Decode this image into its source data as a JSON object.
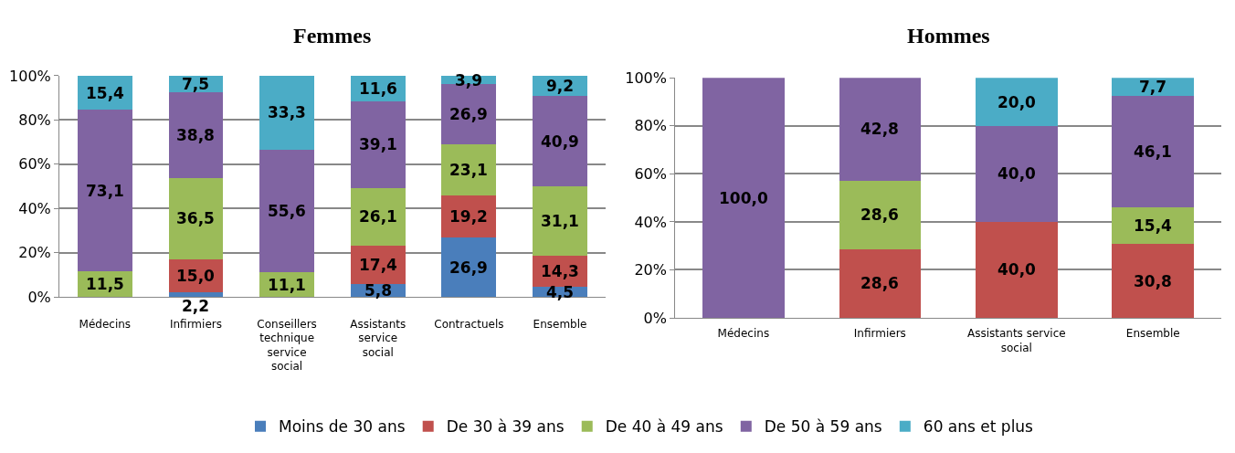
{
  "chart_data": [
    {
      "type": "bar",
      "title": "Femmes",
      "stacked": true,
      "categories": [
        "Médecins",
        "Infirmiers",
        "Conseillers technique service social",
        "Assistants service social",
        "Contractuels",
        "Ensemble"
      ],
      "ylim": [
        0,
        100
      ],
      "yticks": [
        {
          "value": 0,
          "label": "0%"
        },
        {
          "value": 20,
          "label": "20%"
        },
        {
          "value": 40,
          "label": "40%"
        },
        {
          "value": 60,
          "label": "60%"
        },
        {
          "value": 80,
          "label": "80%"
        },
        {
          "value": 100,
          "label": "100%"
        }
      ],
      "grid": "y",
      "legend": "bottom",
      "series": [
        {
          "name": "Moins de 30 ans",
          "color": "#4a7ebb",
          "values": [
            null,
            2.2,
            null,
            5.8,
            26.9,
            4.5
          ],
          "value_labels": [
            null,
            "2,2",
            null,
            "5,8",
            "26,9",
            "4,5"
          ]
        },
        {
          "name": "De 30 à 39 ans",
          "color": "#c0504d",
          "values": [
            null,
            15.0,
            null,
            17.4,
            19.2,
            14.3
          ],
          "value_labels": [
            null,
            "15,0",
            null,
            "17,4",
            "19,2",
            "14,3"
          ]
        },
        {
          "name": "De 40 à 49 ans",
          "color": "#9bbb59",
          "values": [
            11.5,
            36.5,
            11.1,
            26.1,
            23.1,
            31.1
          ],
          "value_labels": [
            "11,5",
            "36,5",
            "11,1",
            "26,1",
            "23,1",
            "31,1"
          ]
        },
        {
          "name": "De 50 à 59 ans",
          "color": "#8064a2",
          "values": [
            73.1,
            38.8,
            55.6,
            39.1,
            26.9,
            40.9
          ],
          "value_labels": [
            "73,1",
            "38,8",
            "55,6",
            "39,1",
            "26,9",
            "40,9"
          ]
        },
        {
          "name": "60 ans et plus",
          "color": "#4bacc6",
          "values": [
            15.4,
            7.5,
            33.3,
            11.6,
            3.9,
            9.2
          ],
          "value_labels": [
            "15,4",
            "7,5",
            "33,3",
            "11,6",
            "3,9",
            "9,2"
          ]
        }
      ]
    },
    {
      "type": "bar",
      "title": "Hommes",
      "stacked": true,
      "categories": [
        "Médecins",
        "Infirmiers",
        "Assistants service social",
        "Ensemble"
      ],
      "ylim": [
        0,
        100
      ],
      "yticks": [
        {
          "value": 0,
          "label": "0%"
        },
        {
          "value": 20,
          "label": "20%"
        },
        {
          "value": 40,
          "label": "40%"
        },
        {
          "value": 60,
          "label": "60%"
        },
        {
          "value": 80,
          "label": "80%"
        },
        {
          "value": 100,
          "label": "100%"
        }
      ],
      "grid": "y",
      "legend": "bottom",
      "series": [
        {
          "name": "Moins de 30 ans",
          "color": "#4a7ebb",
          "values": [
            null,
            null,
            null,
            null
          ],
          "value_labels": [
            null,
            null,
            null,
            null
          ]
        },
        {
          "name": "De 30 à 39 ans",
          "color": "#c0504d",
          "values": [
            null,
            28.6,
            40.0,
            30.8
          ],
          "value_labels": [
            null,
            "28,6",
            "40,0",
            "30,8"
          ]
        },
        {
          "name": "De 40 à 49 ans",
          "color": "#9bbb59",
          "values": [
            null,
            28.6,
            null,
            15.4
          ],
          "value_labels": [
            null,
            "28,6",
            null,
            "15,4"
          ]
        },
        {
          "name": "De 50 à 59 ans",
          "color": "#8064a2",
          "values": [
            100.0,
            42.8,
            40.0,
            46.1
          ],
          "value_labels": [
            "100,0",
            "42,8",
            "40,0",
            "46,1"
          ]
        },
        {
          "name": "60 ans et plus",
          "color": "#4bacc6",
          "values": [
            null,
            null,
            20.0,
            7.7
          ],
          "value_labels": [
            null,
            null,
            "20,0",
            "7,7"
          ]
        }
      ]
    }
  ]
}
